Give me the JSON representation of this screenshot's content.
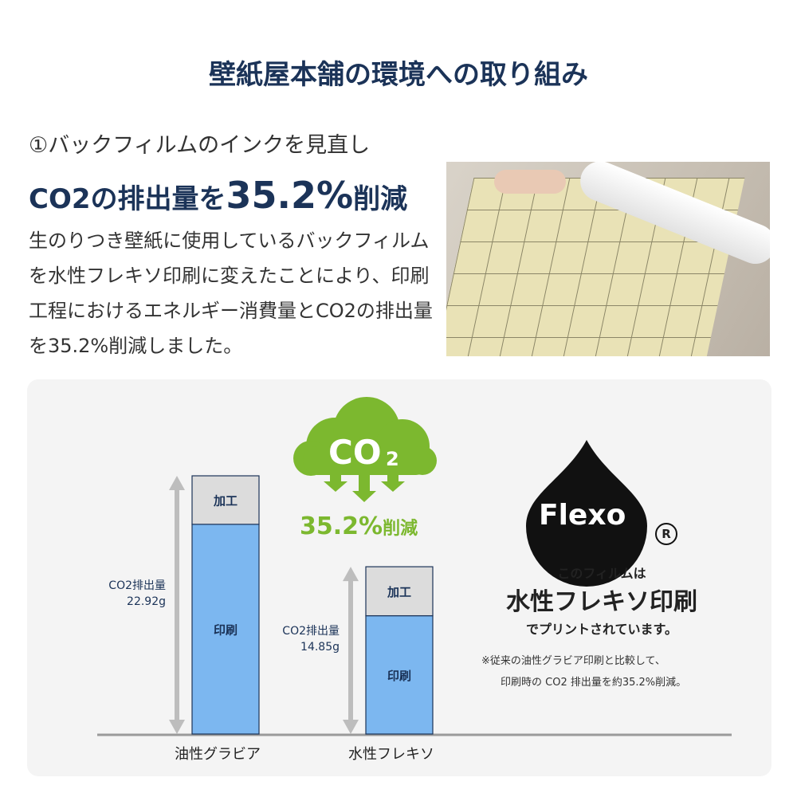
{
  "title": "壁紙屋本舗の環境への取り組み",
  "section": {
    "subtitle": "①バックフィルムのインクを見直し",
    "headline_pre": "CO2の排出量を",
    "headline_value": "35.2%",
    "headline_post": "削減",
    "body": "生のりつき壁紙に使用しているバックフィルムを水性フレキソ印刷に変えたことにより、印刷工程におけるエネルギー消費量とCO2の排出量を35.2%削減しました。"
  },
  "cloud": {
    "text": "CO",
    "sub": "2",
    "color": "#7cb82f"
  },
  "reduction": {
    "value": "35.2%",
    "suffix": "削減"
  },
  "flexo": {
    "logo": "Flexo",
    "reg": "R",
    "line1": "このフィルムは",
    "line2": "水性フレキソ印刷",
    "line3": "でプリントされています。",
    "note1": "※従来の油性グラビア印刷と比較して、",
    "note2": "印刷時の CO2 排出量を約35.2%削減。"
  },
  "chart_data": {
    "type": "bar",
    "stacked": true,
    "categories": [
      "油性グラビア",
      "水性フレキソ"
    ],
    "series": [
      {
        "name": "印刷",
        "values": [
          18.6,
          10.5
        ],
        "color": "#7cb7f0"
      },
      {
        "name": "加工",
        "values": [
          4.3,
          4.35
        ],
        "color": "#dcdcdc"
      }
    ],
    "totals": [
      22.92,
      14.85
    ],
    "total_labels": [
      {
        "label": "CO2排出量",
        "value": "22.92g"
      },
      {
        "label": "CO2排出量",
        "value": "14.85g"
      }
    ],
    "ylim": [
      0,
      22.92
    ],
    "grid": false
  }
}
